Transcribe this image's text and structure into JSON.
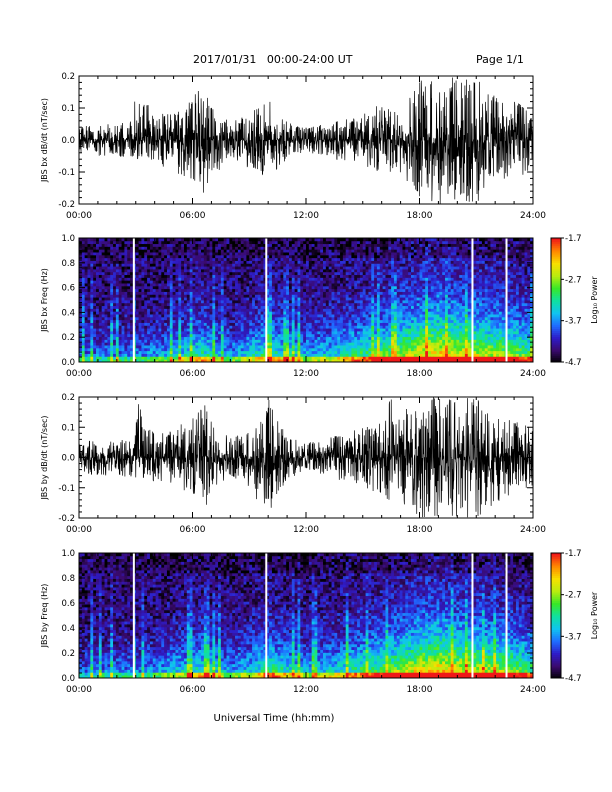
{
  "header": {
    "date_range": "2017/01/31   00:00-24:00 UT",
    "page": "Page 1/1"
  },
  "xlabel": "Universal Time (hh:mm)",
  "x_ticks": [
    "00:00",
    "06:00",
    "12:00",
    "18:00",
    "24:00"
  ],
  "colorbar": {
    "label": "Log₁₀ Power",
    "tick_labels": [
      "-1.7",
      "-2.7",
      "-3.7",
      "-4.7"
    ],
    "range": [
      -4.7,
      -1.7
    ],
    "colormap": [
      "#000000",
      "#3a0a6e",
      "#2e1cc8",
      "#1f6cff",
      "#10c4f0",
      "#10e0a0",
      "#38e828",
      "#b8ec10",
      "#f8e000",
      "#ff8800",
      "#f01818"
    ]
  },
  "chart_data": [
    {
      "type": "line",
      "ylabel": "JBS bx dB/dt (nT/sec)",
      "xlim": [
        0,
        24
      ],
      "ylim": [
        -0.2,
        0.2
      ],
      "y_ticks": [
        "0.2",
        "0.1",
        "0.0",
        "-0.1",
        "-0.2"
      ],
      "series": [
        {
          "x": [
            0,
            1,
            2,
            2.9,
            3,
            4,
            5,
            6,
            6.5,
            7,
            8,
            9,
            10,
            11,
            12,
            13,
            14,
            15,
            16,
            16.5,
            17,
            18,
            19,
            20,
            21,
            22,
            23,
            24
          ],
          "max": [
            0.04,
            0.05,
            0.05,
            0.06,
            0.2,
            0.07,
            0.1,
            0.14,
            0.18,
            0.12,
            0.06,
            0.08,
            0.13,
            0.06,
            0.04,
            0.05,
            0.07,
            0.08,
            0.12,
            0.09,
            0.09,
            0.2,
            0.2,
            0.2,
            0.2,
            0.14,
            0.12,
            0.1
          ],
          "min": [
            -0.04,
            -0.05,
            -0.05,
            -0.06,
            -0.06,
            -0.07,
            -0.1,
            -0.13,
            -0.18,
            -0.12,
            -0.06,
            -0.09,
            -0.12,
            -0.06,
            -0.04,
            -0.05,
            -0.07,
            -0.08,
            -0.12,
            -0.1,
            -0.12,
            -0.2,
            -0.2,
            -0.2,
            -0.2,
            -0.14,
            -0.12,
            -0.1
          ]
        }
      ]
    },
    {
      "type": "heatmap",
      "ylabel": "JBS bx Freq (Hz)",
      "xlim": [
        0,
        24
      ],
      "ylim": [
        0.0,
        1.0
      ],
      "y_ticks": [
        "1.0",
        "0.8",
        "0.6",
        "0.4",
        "0.2",
        "0.0"
      ],
      "zlim": [
        -4.7,
        -1.7
      ],
      "gap_times": [
        2.9,
        9.9,
        20.8,
        22.6
      ]
    },
    {
      "type": "line",
      "ylabel": "JBS by dB/dt (nT/sec)",
      "xlim": [
        0,
        24
      ],
      "ylim": [
        -0.2,
        0.2
      ],
      "y_ticks": [
        "0.2",
        "0.1",
        "0.0",
        "-0.1",
        "-0.2"
      ],
      "series": [
        {
          "x": [
            0,
            1,
            2,
            2.9,
            3,
            4,
            5,
            6,
            6.5,
            7,
            8,
            9,
            10,
            11,
            12,
            13,
            14,
            15,
            16,
            16.5,
            17,
            18,
            19,
            20,
            21,
            22,
            23,
            24
          ],
          "max": [
            0.05,
            0.06,
            0.06,
            0.06,
            0.2,
            0.08,
            0.1,
            0.13,
            0.2,
            0.12,
            0.07,
            0.09,
            0.2,
            0.07,
            0.05,
            0.06,
            0.08,
            0.1,
            0.12,
            0.2,
            0.15,
            0.2,
            0.2,
            0.2,
            0.2,
            0.16,
            0.12,
            0.1
          ],
          "min": [
            -0.05,
            -0.06,
            -0.06,
            -0.07,
            -0.07,
            -0.08,
            -0.1,
            -0.13,
            -0.2,
            -0.12,
            -0.07,
            -0.1,
            -0.2,
            -0.07,
            -0.05,
            -0.06,
            -0.08,
            -0.1,
            -0.12,
            -0.18,
            -0.15,
            -0.2,
            -0.2,
            -0.2,
            -0.2,
            -0.16,
            -0.12,
            -0.1
          ]
        }
      ]
    },
    {
      "type": "heatmap",
      "ylabel": "JBS by Freq (Hz)",
      "xlim": [
        0,
        24
      ],
      "ylim": [
        0.0,
        1.0
      ],
      "y_ticks": [
        "1.0",
        "0.8",
        "0.6",
        "0.4",
        "0.2",
        "0.0"
      ],
      "zlim": [
        -4.7,
        -1.7
      ],
      "gap_times": [
        2.9,
        9.9,
        20.8,
        22.6
      ]
    }
  ]
}
